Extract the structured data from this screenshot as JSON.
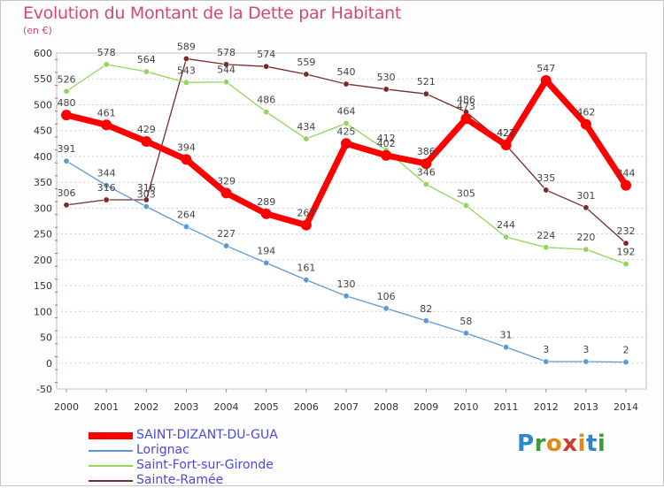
{
  "header": {
    "title": "Evolution du Montant de la Dette par Habitant",
    "subtitle": "(en €)"
  },
  "logo": {
    "text": "Proxiti",
    "letters": [
      {
        "ch": "P",
        "color": "#2f86c9"
      },
      {
        "ch": "r",
        "color": "#3a9c3f"
      },
      {
        "ch": "o",
        "color": "#e08a1c"
      },
      {
        "ch": "x",
        "color": "#d03a2a"
      },
      {
        "ch": "i",
        "color": "#e08a1c"
      },
      {
        "ch": "t",
        "color": "#2f86c9"
      },
      {
        "ch": "i",
        "color": "#3a9c3f"
      }
    ]
  },
  "chart_data": {
    "type": "line",
    "title": "Evolution du Montant de la Dette par Habitant",
    "subtitle": "(en €)",
    "x": [
      "2000",
      "2001",
      "2002",
      "2003",
      "2004",
      "2005",
      "2006",
      "2007",
      "2008",
      "2009",
      "2010",
      "2011",
      "2012",
      "2013",
      "2014"
    ],
    "ylim": [
      -50,
      600
    ],
    "yticks": [
      -50,
      0,
      50,
      100,
      150,
      200,
      250,
      300,
      350,
      400,
      450,
      500,
      550,
      600
    ],
    "grid": "horizontal-dashed",
    "legend_position": "bottom-left",
    "series": [
      {
        "name": "Sainte-Ramée",
        "color": "#7a2a2a",
        "values": [
          306,
          316,
          316,
          589,
          578,
          574,
          559,
          540,
          530,
          521,
          486,
          422,
          335,
          301,
          232
        ]
      },
      {
        "name": "Saint-Fort-sur-Gironde",
        "color": "#8fd65a",
        "values": [
          526,
          578,
          564,
          543,
          544,
          486,
          434,
          464,
          412,
          346,
          305,
          244,
          224,
          220,
          192
        ]
      },
      {
        "name": "Lorignac",
        "color": "#5b9bd5",
        "values": [
          391,
          344,
          303,
          264,
          227,
          194,
          161,
          130,
          106,
          82,
          58,
          31,
          3,
          3,
          2
        ]
      },
      {
        "name": "SAINT-DIZANT-DU-GUA",
        "color": "#ff0000",
        "values": [
          480,
          461,
          429,
          394,
          329,
          289,
          267,
          425,
          402,
          386,
          473,
          422,
          547,
          462,
          344
        ]
      }
    ],
    "legend_order": [
      "SAINT-DIZANT-DU-GUA",
      "Lorignac",
      "Saint-Fort-sur-Gironde",
      "Sainte-Ramée"
    ]
  }
}
